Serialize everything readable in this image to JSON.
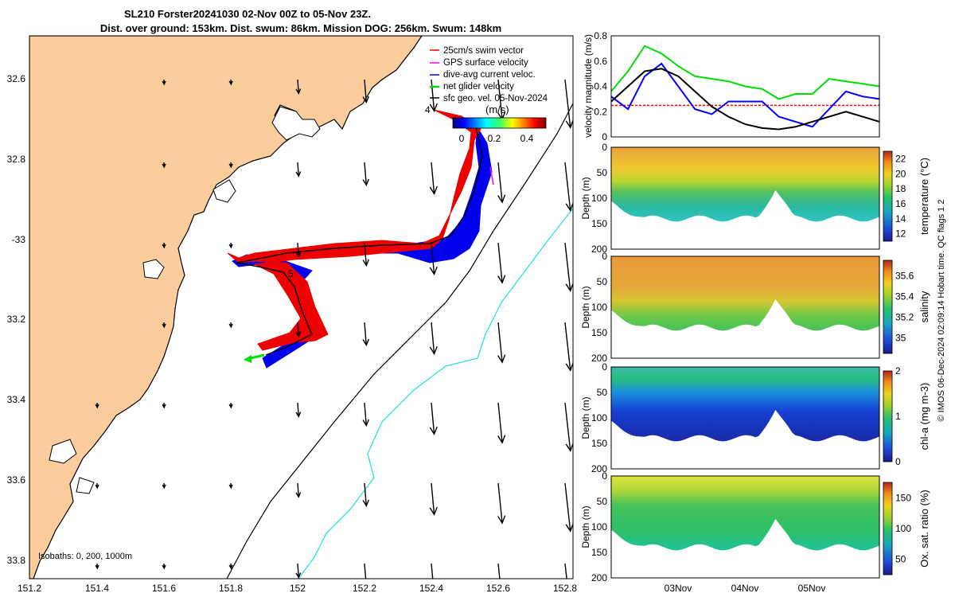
{
  "title_line1": "SL210 Forster20241030 02-Nov 00Z to 05-Nov 23Z.",
  "title_line2": "Dist. over ground: 153km. Dist. swum: 86km. Mission DOG: 256km. Swum: 148km",
  "map": {
    "lon_ticks": [
      "151.2",
      "151.4",
      "151.6",
      "151.8",
      "152",
      "152.2",
      "152.4",
      "152.6",
      "152.8"
    ],
    "lat_ticks": [
      "32.6",
      "32.8",
      "-33",
      "33.2",
      "33.4",
      "33.6",
      "33.8"
    ],
    "legend": [
      {
        "label": "25cm/s swim vector",
        "color": "#ff0000"
      },
      {
        "label": "GPS surface velocity",
        "color": "#ff00ff"
      },
      {
        "label": "dive-avg current veloc.",
        "color": "#0000ff"
      },
      {
        "label": "net glider velocity",
        "color": "#00dd00"
      },
      {
        "label": "sfc geo. vel. 05-Nov-2024",
        "color": "#000000"
      }
    ],
    "colorbar_label": "(m/s)",
    "colorbar_ticks": [
      "0",
      "0.2",
      "0.4"
    ],
    "isobaths_label": "Isobaths: 0, 200, 1000m",
    "day_labels": [
      "4",
      "5"
    ]
  },
  "chart_data": [
    {
      "type": "line",
      "title": "",
      "ylabel": "velocity magnitude (m/s)",
      "ylim": [
        0,
        0.8
      ],
      "yticks": [
        "0",
        "0.2",
        "0.4",
        "0.6",
        "0.8"
      ],
      "x_days": [
        2.0,
        2.25,
        2.5,
        2.75,
        3.0,
        3.25,
        3.5,
        3.75,
        4.0,
        4.25,
        4.5,
        4.75,
        5.0,
        5.25,
        5.5,
        5.75,
        6.0
      ],
      "series": [
        {
          "color": "#00dd00",
          "values": [
            0.36,
            0.52,
            0.72,
            0.66,
            0.56,
            0.48,
            0.46,
            0.44,
            0.4,
            0.38,
            0.3,
            0.34,
            0.34,
            0.46,
            0.44,
            0.42,
            0.4
          ]
        },
        {
          "color": "#0000ff",
          "values": [
            0.32,
            0.22,
            0.48,
            0.58,
            0.4,
            0.22,
            0.18,
            0.28,
            0.28,
            0.28,
            0.16,
            0.12,
            0.08,
            0.22,
            0.36,
            0.32,
            0.3
          ]
        },
        {
          "color": "#000000",
          "values": [
            0.28,
            0.4,
            0.52,
            0.54,
            0.48,
            0.36,
            0.24,
            0.16,
            0.1,
            0.07,
            0.06,
            0.08,
            0.12,
            0.16,
            0.2,
            0.16,
            0.12
          ]
        }
      ],
      "reference_line": {
        "value": 0.25,
        "color": "#ff0000"
      }
    },
    {
      "type": "heatmap",
      "ylabel": "Depth (m)",
      "colorbar_label": "temperature (°C)",
      "ylim": [
        200,
        0
      ],
      "yticks": [
        "0",
        "50",
        "100",
        "150",
        "200"
      ],
      "colorbar_ticks": [
        "12",
        "14",
        "16",
        "18",
        "20",
        "22"
      ],
      "colorbar_range": [
        11,
        23
      ]
    },
    {
      "type": "heatmap",
      "ylabel": "Depth (m)",
      "colorbar_label": "salinity",
      "ylim": [
        200,
        0
      ],
      "yticks": [
        "0",
        "50",
        "100",
        "150",
        "200"
      ],
      "colorbar_ticks": [
        "35",
        "35.2",
        "35.4",
        "35.6"
      ],
      "colorbar_range": [
        34.85,
        35.75
      ]
    },
    {
      "type": "heatmap",
      "ylabel": "Depth (m)",
      "colorbar_label": "chl-a (mg m-3)",
      "ylim": [
        200,
        0
      ],
      "yticks": [
        "0",
        "50",
        "100",
        "150",
        "200"
      ],
      "colorbar_ticks": [
        "0",
        "1",
        "2"
      ],
      "colorbar_range": [
        0,
        2
      ]
    },
    {
      "type": "heatmap",
      "ylabel": "Depth (m)",
      "colorbar_label": "Ox. sat. ratio (%)",
      "ylim": [
        200,
        0
      ],
      "yticks": [
        "0",
        "50",
        "100",
        "150",
        "200"
      ],
      "colorbar_ticks": [
        "50",
        "100",
        "150"
      ],
      "colorbar_range": [
        25,
        175
      ]
    }
  ],
  "time_ticks": [
    "03Nov",
    "04Nov",
    "05Nov"
  ],
  "side_note": "© IMOS 06-Dec-2024 02:09:14 Hobart time. QC flags 1 2"
}
